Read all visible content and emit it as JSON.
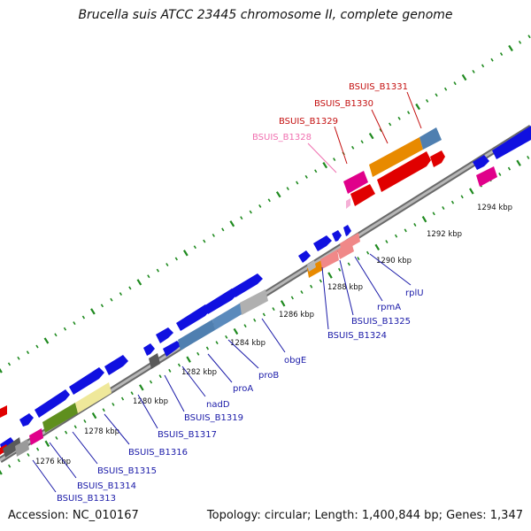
{
  "title": "Brucella suis ATCC 23445 chromosome II, complete genome",
  "footer": {
    "accession": "Accession: NC_010167",
    "summary": "Topology: circular; Length: 1,400,844 bp; Genes: 1,347"
  },
  "colors": {
    "forward_cds": "#1010e0",
    "reverse_cds": "#1010e0",
    "backbone": "#8a8a8a",
    "tick": "#1f8a1f",
    "label_blue": "#1a1aa8",
    "label_red": "#c41010",
    "label_pink": "#f070b0"
  },
  "kbp_ticks": [
    "1276 kbp",
    "1278 kbp",
    "1280 kbp",
    "1282 kbp",
    "1284 kbp",
    "1286 kbp",
    "1288 kbp",
    "1290 kbp",
    "1292 kbp",
    "1294 kbp"
  ],
  "highlighted_genes": [
    {
      "name": "BSUIS_B1331",
      "color": "red"
    },
    {
      "name": "BSUIS_B1330",
      "color": "red"
    },
    {
      "name": "BSUIS_B1329",
      "color": "red"
    },
    {
      "name": "BSUIS_B1328",
      "color": "pink"
    }
  ],
  "gene_labels": [
    "rplU",
    "rpmA",
    "BSUIS_B1325",
    "BSUIS_B1324",
    "obgE",
    "proB",
    "proA",
    "nadD",
    "BSUIS_B1319",
    "BSUIS_B1317",
    "BSUIS_B1316",
    "BSUIS_B1315",
    "BSUIS_B1314",
    "BSUIS_B1313"
  ]
}
